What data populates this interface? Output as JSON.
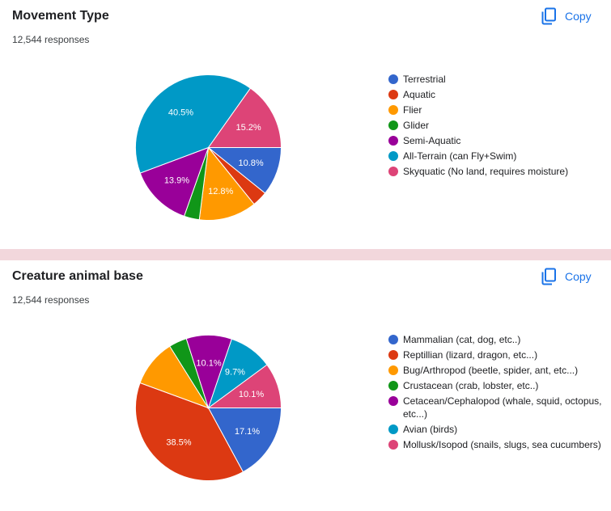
{
  "chart_data": [
    {
      "type": "pie",
      "title": "Movement Type",
      "subtitle": "12,544 responses",
      "copy_label": "Copy",
      "categories": [
        "Terrestrial",
        "Aquatic",
        "Flier",
        "Glider",
        "Semi-Aquatic",
        "All-Terrain (can Fly+Swim)",
        "Skyquatic (No land, requires moisture)"
      ],
      "values": [
        10.8,
        3.4,
        12.8,
        3.4,
        13.9,
        40.5,
        15.2
      ],
      "labels": [
        "10.8%",
        "",
        "12.8%",
        "",
        "13.9%",
        "40.5%",
        "15.2%"
      ],
      "colors": [
        "#3366cc",
        "#dc3912",
        "#ff9900",
        "#109618",
        "#990099",
        "#0099c6",
        "#dd4477"
      ]
    },
    {
      "type": "pie",
      "title": "Creature animal base",
      "subtitle": "12,544 responses",
      "copy_label": "Copy",
      "categories": [
        "Mammalian (cat, dog, etc..)",
        "Reptillian (lizard, dragon, etc...)",
        "Bug/Arthropod (beetle, spider, ant, etc...)",
        "Crustacean (crab, lobster, etc..)",
        "Cetacean/Cephalopod (whale, squid, octopus, etc...)",
        "Avian (birds)",
        "Mollusk/Isopod (snails, slugs, sea cucumbers)"
      ],
      "values": [
        17.1,
        38.5,
        10.5,
        4.0,
        10.1,
        9.7,
        10.1
      ],
      "labels": [
        "17.1%",
        "38.5%",
        "",
        "",
        "10.1%",
        "9.7%",
        "10.1%"
      ],
      "colors": [
        "#3366cc",
        "#dc3912",
        "#ff9900",
        "#109618",
        "#990099",
        "#0099c6",
        "#dd4477"
      ]
    }
  ]
}
